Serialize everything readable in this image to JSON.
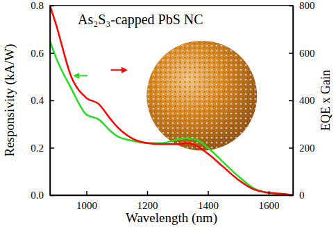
{
  "chart_data": {
    "type": "line",
    "title": "As₂S₃-capped PbS NC",
    "x_label": "Wavelength (nm)",
    "y_label": "Responsivity (kA/W)",
    "y2_label": "EQE x Gain",
    "x": [
      880,
      900,
      950,
      1000,
      1040,
      1080,
      1100,
      1150,
      1200,
      1250,
      1300,
      1330,
      1360,
      1400,
      1450,
      1500,
      1550,
      1600,
      1650,
      1680
    ],
    "series": [
      {
        "color": "#22dd22",
        "values": [
          0.65,
          0.58,
          0.45,
          0.34,
          0.32,
          0.27,
          0.25,
          0.23,
          0.22,
          0.22,
          0.235,
          0.24,
          0.235,
          0.2,
          0.14,
          0.08,
          0.03,
          0.01,
          0.005,
          0
        ]
      },
      {
        "color": "#ff0000",
        "axis": "y2",
        "values": [
          800,
          720,
          500,
          410,
          385,
          320,
          290,
          240,
          220,
          215,
          215,
          220,
          210,
          175,
          120,
          65,
          25,
          10,
          5,
          0
        ]
      }
    ],
    "xlim": [
      880,
      1680
    ],
    "xticks": [
      1000,
      1200,
      1400,
      1600
    ],
    "ylim": [
      0,
      0.8
    ],
    "yticks": [
      {
        "value": 0,
        "label": "0.0"
      },
      {
        "value": 0.2,
        "label": "0.2"
      },
      {
        "value": 0.4,
        "label": "0.4"
      },
      {
        "value": 0.6,
        "label": "0.6"
      },
      {
        "value": 0.8,
        "label": "0.8"
      }
    ],
    "y2lim": [
      0,
      800
    ],
    "y2ticks": [
      0,
      200,
      400,
      600,
      800
    ],
    "grid": false
  }
}
